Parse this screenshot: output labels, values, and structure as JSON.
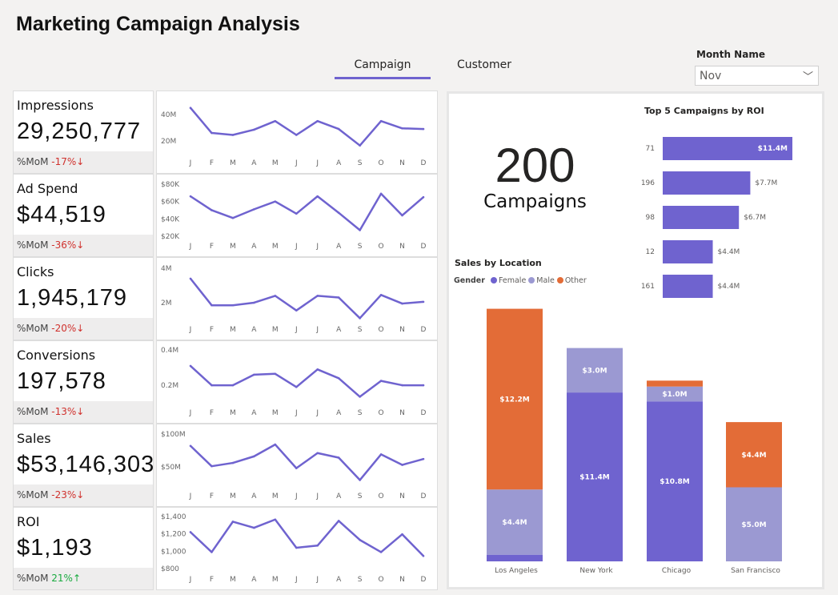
{
  "title": "Marketing Campaign Analysis",
  "tabs": [
    {
      "label": "Campaign",
      "active": true
    },
    {
      "label": "Customer",
      "active": false
    }
  ],
  "filter": {
    "label": "Month Name",
    "value": "Nov",
    "icon": "chevron-down-icon"
  },
  "colors": {
    "accent": "#6f63cf",
    "female": "#6f63cf",
    "male": "#9b99d2",
    "other": "#e36c37",
    "negative": "#d0312d",
    "positive": "#1aab40"
  },
  "kpis": [
    {
      "label": "Impressions",
      "value": "29,250,777",
      "mom_label": "%MoM",
      "mom": "-17%↓",
      "trend": "neg"
    },
    {
      "label": "Ad Spend",
      "value": "$44,519",
      "mom_label": "%MoM",
      "mom": "-36%↓",
      "trend": "neg"
    },
    {
      "label": "Clicks",
      "value": "1,945,179",
      "mom_label": "%MoM",
      "mom": "-20%↓",
      "trend": "neg"
    },
    {
      "label": "Conversions",
      "value": "197,578",
      "mom_label": "%MoM",
      "mom": "-13%↓",
      "trend": "neg"
    },
    {
      "label": "Sales",
      "value": "$53,146,303",
      "mom_label": "%MoM",
      "mom": "-23%↓",
      "trend": "neg"
    },
    {
      "label": "ROI",
      "value": "$1,193",
      "mom_label": "%MoM",
      "mom": "21%↑",
      "trend": "pos"
    }
  ],
  "summary": {
    "count": "200",
    "count_label": "Campaigns"
  },
  "chart_data": [
    {
      "type": "line",
      "months": [
        "J",
        "F",
        "M",
        "A",
        "M",
        "J",
        "J",
        "A",
        "S",
        "O",
        "N",
        "D"
      ],
      "ylim": [
        6,
        51.5
      ],
      "ticks": [
        {
          "v": 40,
          "label": "40M"
        },
        {
          "v": 20,
          "label": "20M"
        }
      ],
      "values": [
        45,
        26,
        24.5,
        28.5,
        35,
        24.5,
        35,
        29,
        16.5,
        35,
        29.5,
        29
      ]
    },
    {
      "type": "line",
      "months": [
        "J",
        "F",
        "M",
        "A",
        "M",
        "J",
        "J",
        "A",
        "S",
        "O",
        "N",
        "D"
      ],
      "ylim": [
        12.6,
        81.8
      ],
      "ticks": [
        {
          "v": 80,
          "label": "$80K"
        },
        {
          "v": 60,
          "label": "$60K"
        },
        {
          "v": 40,
          "label": "$40K"
        },
        {
          "v": 20,
          "label": "$20K"
        }
      ],
      "values": [
        66,
        50,
        41,
        51,
        60,
        46,
        66,
        47,
        27,
        69,
        44,
        65
      ]
    },
    {
      "type": "line",
      "months": [
        "J",
        "F",
        "M",
        "A",
        "M",
        "J",
        "J",
        "A",
        "S",
        "O",
        "N",
        "D"
      ],
      "ylim": [
        0.65,
        4.14
      ],
      "ticks": [
        {
          "v": 4,
          "label": "4M"
        },
        {
          "v": 2,
          "label": "2M"
        }
      ],
      "values": [
        3.4,
        1.85,
        1.85,
        2.0,
        2.4,
        1.55,
        2.4,
        2.3,
        1.1,
        2.45,
        1.95,
        2.05
      ]
    },
    {
      "type": "line",
      "months": [
        "J",
        "F",
        "M",
        "A",
        "M",
        "J",
        "J",
        "A",
        "S",
        "O",
        "N",
        "D"
      ],
      "ylim": [
        0.064,
        0.405
      ],
      "ticks": [
        {
          "v": 0.4,
          "label": "0.4M"
        },
        {
          "v": 0.2,
          "label": "0.2M"
        }
      ],
      "values": [
        0.31,
        0.2,
        0.2,
        0.26,
        0.265,
        0.19,
        0.29,
        0.24,
        0.135,
        0.225,
        0.2,
        0.2
      ]
    },
    {
      "type": "line",
      "months": [
        "J",
        "F",
        "M",
        "A",
        "M",
        "J",
        "J",
        "A",
        "S",
        "O",
        "N",
        "D"
      ],
      "ylim": [
        11,
        102.4
      ],
      "ticks": [
        {
          "v": 100,
          "label": "$100M"
        },
        {
          "v": 50,
          "label": "$50M"
        }
      ],
      "values": [
        82,
        51,
        56,
        66,
        84,
        48,
        71,
        64,
        30,
        69,
        53,
        62
      ]
    },
    {
      "type": "line",
      "months": [
        "J",
        "F",
        "M",
        "A",
        "M",
        "J",
        "J",
        "A",
        "S",
        "O",
        "N",
        "D"
      ],
      "ylim": [
        717,
        1409
      ],
      "ticks": [
        {
          "v": 1400,
          "label": "$1,400"
        },
        {
          "v": 1200,
          "label": "$1,200"
        },
        {
          "v": 1000,
          "label": "$1,000"
        },
        {
          "v": 800,
          "label": "$800"
        }
      ],
      "values": [
        1220,
        990,
        1340,
        1270,
        1365,
        1040,
        1065,
        1350,
        1130,
        990,
        1195,
        945
      ]
    },
    {
      "type": "bar",
      "orientation": "horizontal",
      "title": "Top 5 Campaigns by ROI",
      "categories": [
        "71",
        "196",
        "98",
        "12",
        "161"
      ],
      "values": [
        11.4,
        7.7,
        6.7,
        4.4,
        4.4
      ],
      "labels": [
        "$11.4M",
        "$7.7M",
        "$6.7M",
        "$4.4M",
        "$4.4M"
      ]
    },
    {
      "type": "bar",
      "stacked": true,
      "title": "Sales by Location",
      "legend_title": "Gender",
      "categories": [
        "Los Angeles",
        "New York",
        "Chicago",
        "San Francisco"
      ],
      "series": [
        {
          "name": "Female",
          "values": [
            0.45,
            11.4,
            10.8,
            0
          ],
          "labels": [
            "",
            "$11.4M",
            "$10.8M",
            ""
          ]
        },
        {
          "name": "Male",
          "values": [
            4.4,
            3.0,
            1.0,
            5.0
          ],
          "labels": [
            "$4.4M",
            "$3.0M",
            "$1.0M",
            "$5.0M"
          ]
        },
        {
          "name": "Other",
          "values": [
            12.2,
            0,
            0.4,
            4.4
          ],
          "labels": [
            "$12.2M",
            "",
            "",
            "$4.4M"
          ]
        }
      ]
    }
  ]
}
